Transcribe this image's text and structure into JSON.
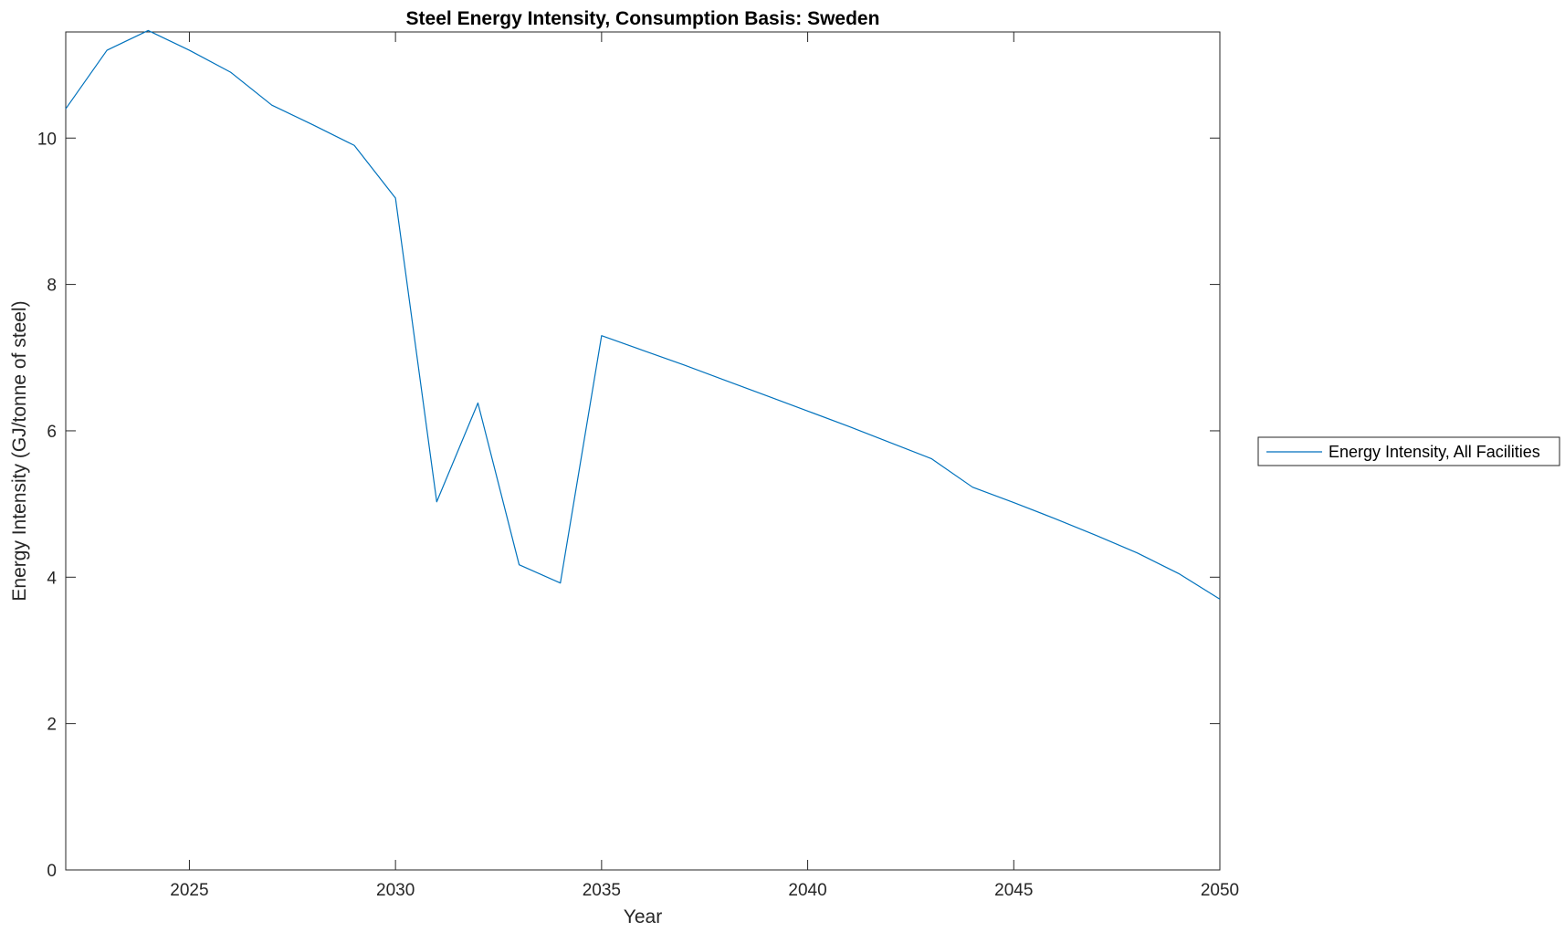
{
  "chart_data": {
    "type": "line",
    "title": "Steel Energy Intensity, Consumption Basis: Sweden",
    "xlabel": "Year",
    "ylabel": "Energy Intensity (GJ/tonne of steel)",
    "xlim": [
      2022,
      2050
    ],
    "ylim": [
      0,
      11.45
    ],
    "xticks": [
      2025,
      2030,
      2035,
      2040,
      2045,
      2050
    ],
    "yticks": [
      0,
      2,
      4,
      6,
      8,
      10
    ],
    "grid": false,
    "legend_position": "outside-right",
    "series": [
      {
        "name": "Energy Intensity, All Facilities",
        "color": "#0072BD",
        "x": [
          2022,
          2023,
          2024,
          2025,
          2026,
          2027,
          2028,
          2029,
          2030,
          2031,
          2032,
          2033,
          2034,
          2035,
          2036,
          2037,
          2038,
          2039,
          2040,
          2041,
          2042,
          2043,
          2044,
          2045,
          2046,
          2047,
          2048,
          2049,
          2050
        ],
        "values": [
          10.4,
          11.2,
          11.47,
          11.2,
          10.9,
          10.45,
          10.18,
          9.9,
          9.18,
          5.03,
          6.38,
          4.17,
          3.92,
          7.3,
          7.1,
          6.9,
          6.69,
          6.48,
          6.27,
          6.06,
          5.84,
          5.62,
          5.23,
          5.02,
          4.8,
          4.57,
          4.33,
          4.05,
          3.7
        ]
      }
    ]
  }
}
